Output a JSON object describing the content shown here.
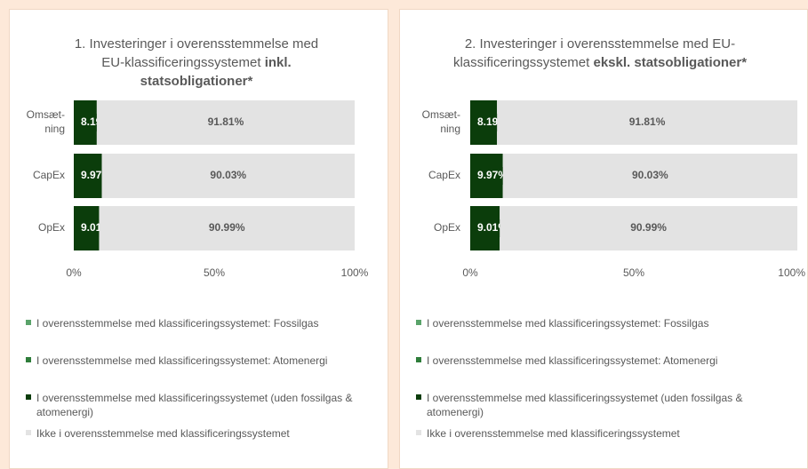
{
  "chart_data": [
    {
      "type": "stacked-bar-horizontal",
      "title": "1. Investeringer i overensstemmelse med EU-klassificeringssystemet ",
      "title_bold": "inkl. statsobligationer*",
      "categories": [
        "Omsæt-ning",
        "CapEx",
        "OpEx"
      ],
      "series": [
        {
          "name": "I overensstemmelse med klassificeringssystemet: Fossilgas",
          "color": "#5aa36a",
          "values": [
            0,
            0,
            0
          ]
        },
        {
          "name": "I overensstemmelse med klassificeringssystemet: Atomenergi",
          "color": "#2e7d3a",
          "values": [
            0,
            0,
            0
          ]
        },
        {
          "name": "I overensstemmelse med klassificeringssystemet (uden fossilgas & atomenergi)",
          "color": "#0b3d0b",
          "values": [
            8.19,
            9.97,
            9.01
          ],
          "value_labels": [
            "8.19%",
            "9.97%",
            "9.01%"
          ]
        },
        {
          "name": "Ikke i overensstemmelse med klassificeringssystemet",
          "color": "#e3e3e3",
          "values": [
            91.81,
            90.03,
            90.99
          ],
          "value_labels": [
            "91.81%",
            "90.03%",
            "90.99%"
          ]
        }
      ],
      "xlim": [
        0,
        100
      ],
      "xticks": [
        {
          "value": 0,
          "label": "0%"
        },
        {
          "value": 50,
          "label": "50%"
        },
        {
          "value": 100,
          "label": "100%"
        }
      ]
    },
    {
      "type": "stacked-bar-horizontal",
      "title": "2. Investeringer i overensstemmelse med EU-klassificeringssystemet ",
      "title_bold": "ekskl. statsobligationer*",
      "categories": [
        "Omsæt-ning",
        "CapEx",
        "OpEx"
      ],
      "series": [
        {
          "name": "I overensstemmelse med klassificeringssystemet: Fossilgas",
          "color": "#5aa36a",
          "values": [
            0,
            0,
            0
          ]
        },
        {
          "name": "I overensstemmelse med klassificeringssystemet: Atomenergi",
          "color": "#2e7d3a",
          "values": [
            0,
            0,
            0
          ]
        },
        {
          "name": "I overensstemmelse med klassificeringssystemet (uden fossilgas & atomenergi)",
          "color": "#0b3d0b",
          "values": [
            8.19,
            9.97,
            9.01
          ],
          "value_labels": [
            "8.19%",
            "9.97%",
            "9.01%"
          ]
        },
        {
          "name": "Ikke i overensstemmelse med klassificeringssystemet",
          "color": "#e3e3e3",
          "values": [
            91.81,
            90.03,
            90.99
          ],
          "value_labels": [
            "91.81%",
            "90.03%",
            "90.99%"
          ]
        }
      ],
      "xlim": [
        0,
        100
      ],
      "xticks": [
        {
          "value": 0,
          "label": "0%"
        },
        {
          "value": 50,
          "label": "50%"
        },
        {
          "value": 100,
          "label": "100%"
        }
      ]
    }
  ]
}
